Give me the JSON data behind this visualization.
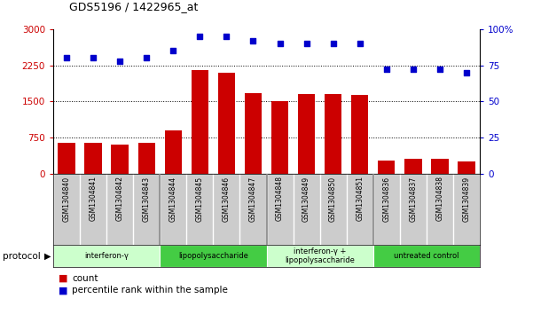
{
  "title": "GDS5196 / 1422965_at",
  "samples": [
    "GSM1304840",
    "GSM1304841",
    "GSM1304842",
    "GSM1304843",
    "GSM1304844",
    "GSM1304845",
    "GSM1304846",
    "GSM1304847",
    "GSM1304848",
    "GSM1304849",
    "GSM1304850",
    "GSM1304851",
    "GSM1304836",
    "GSM1304837",
    "GSM1304838",
    "GSM1304839"
  ],
  "counts": [
    640,
    650,
    610,
    640,
    900,
    2150,
    2100,
    1680,
    1510,
    1650,
    1650,
    1640,
    270,
    310,
    310,
    250
  ],
  "percentiles": [
    80,
    80,
    78,
    80,
    85,
    95,
    95,
    92,
    90,
    90,
    90,
    90,
    72,
    72,
    72,
    70
  ],
  "bar_color": "#CC0000",
  "dot_color": "#0000CC",
  "left_ylim": [
    0,
    3000
  ],
  "right_ylim": [
    0,
    100
  ],
  "left_yticks": [
    0,
    750,
    1500,
    2250,
    3000
  ],
  "right_yticks": [
    0,
    25,
    50,
    75,
    100
  ],
  "right_yticklabels": [
    "0",
    "25",
    "50",
    "75",
    "100%"
  ],
  "left_ycolor": "#CC0000",
  "right_ycolor": "#0000CC",
  "groups": [
    {
      "label": "interferon-γ",
      "start": 0,
      "end": 4,
      "color": "#ccffcc"
    },
    {
      "label": "lipopolysaccharide",
      "start": 4,
      "end": 8,
      "color": "#44cc44"
    },
    {
      "label": "interferon-γ +\nlipopolysaccharide",
      "start": 8,
      "end": 12,
      "color": "#ccffcc"
    },
    {
      "label": "untreated control",
      "start": 12,
      "end": 16,
      "color": "#44cc44"
    }
  ],
  "protocol_label": "protocol",
  "legend_count_label": "count",
  "legend_percentile_label": "percentile rank within the sample",
  "grid_dotted_values": [
    750,
    1500,
    2250
  ],
  "sample_bg_color": "#cccccc",
  "separator_color": "#888888"
}
